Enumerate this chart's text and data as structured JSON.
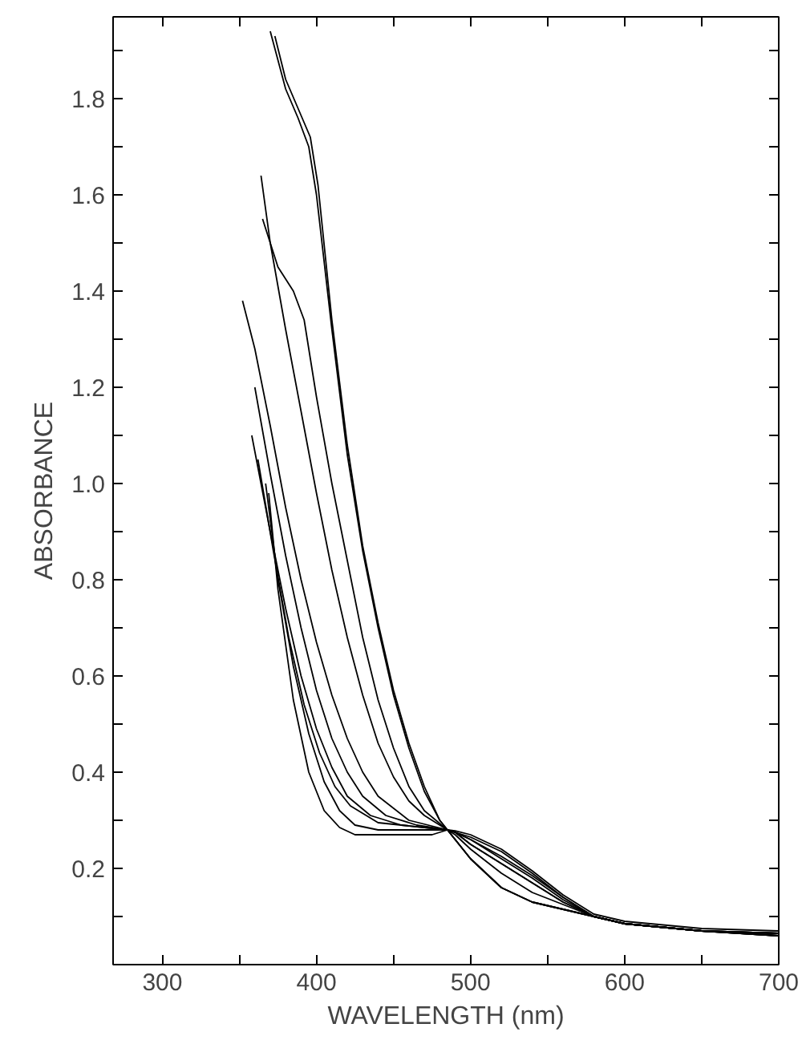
{
  "chart_data": {
    "type": "line",
    "xlabel": "WAVELENGTH (nm)",
    "ylabel": "ABSORBANCE",
    "xlim": [
      268,
      700
    ],
    "ylim": [
      0,
      1.97
    ],
    "xticks": [
      300,
      {
        "value": 350,
        "label": null
      },
      400,
      {
        "value": 450,
        "label": null
      },
      500,
      {
        "value": 550,
        "label": null
      },
      600,
      {
        "value": 650,
        "label": null
      },
      700
    ],
    "yticks": [
      {
        "value": 0.1,
        "label": null
      },
      0.2,
      {
        "value": 0.3,
        "label": null
      },
      0.4,
      {
        "value": 0.5,
        "label": null
      },
      0.6,
      {
        "value": 0.7,
        "label": null
      },
      0.8,
      {
        "value": 0.9,
        "label": null
      },
      {
        "value": 1.0,
        "label": "1.0"
      },
      {
        "value": 1.1,
        "label": null
      },
      1.2,
      {
        "value": 1.3,
        "label": null
      },
      1.4,
      {
        "value": 1.5,
        "label": null
      },
      1.6,
      {
        "value": 1.7,
        "label": null
      },
      1.8,
      {
        "value": 1.9,
        "label": null
      }
    ],
    "grid": false,
    "marker": "none",
    "line_style": "solid",
    "series": [
      {
        "color": "#000000",
        "x": [
          370,
          380,
          388,
          395,
          400,
          410,
          420,
          430,
          440,
          450,
          460,
          470,
          480,
          485,
          490,
          500,
          520,
          540,
          560,
          580,
          600,
          650,
          700
        ],
        "values": [
          1.94,
          1.82,
          1.76,
          1.7,
          1.6,
          1.32,
          1.06,
          0.86,
          0.7,
          0.56,
          0.45,
          0.36,
          0.3,
          0.28,
          0.26,
          0.22,
          0.16,
          0.13,
          0.115,
          0.1,
          0.085,
          0.07,
          0.06
        ]
      },
      {
        "color": "#000000",
        "x": [
          373,
          380,
          388,
          396,
          401,
          410,
          420,
          430,
          440,
          450,
          460,
          470,
          480,
          485,
          490,
          500,
          520,
          540,
          560,
          580,
          600,
          650,
          700
        ],
        "values": [
          1.93,
          1.84,
          1.78,
          1.72,
          1.62,
          1.34,
          1.08,
          0.87,
          0.71,
          0.57,
          0.46,
          0.37,
          0.3,
          0.28,
          0.26,
          0.22,
          0.16,
          0.13,
          0.115,
          0.1,
          0.085,
          0.07,
          0.06
        ]
      },
      {
        "color": "#000000",
        "x": [
          364,
          370,
          380,
          390,
          400,
          410,
          420,
          430,
          440,
          450,
          460,
          470,
          485,
          490,
          500,
          520,
          540,
          560,
          580,
          600,
          650,
          700
        ],
        "values": [
          1.64,
          1.5,
          1.32,
          1.15,
          0.98,
          0.82,
          0.68,
          0.56,
          0.46,
          0.39,
          0.34,
          0.31,
          0.28,
          0.26,
          0.22,
          0.16,
          0.13,
          0.115,
          0.1,
          0.085,
          0.07,
          0.06
        ]
      },
      {
        "color": "#000000",
        "x": [
          365,
          375,
          385,
          392,
          400,
          410,
          420,
          430,
          440,
          450,
          460,
          470,
          485,
          490,
          500,
          520,
          540,
          560,
          580,
          600,
          650,
          700
        ],
        "values": [
          1.55,
          1.45,
          1.4,
          1.34,
          1.18,
          1.0,
          0.84,
          0.68,
          0.55,
          0.45,
          0.37,
          0.32,
          0.28,
          0.27,
          0.24,
          0.19,
          0.15,
          0.125,
          0.1,
          0.085,
          0.07,
          0.06
        ]
      },
      {
        "color": "#000000",
        "x": [
          352,
          360,
          370,
          380,
          390,
          400,
          410,
          420,
          430,
          440,
          460,
          485,
          490,
          500,
          520,
          540,
          560,
          580,
          600,
          650,
          700
        ],
        "values": [
          1.38,
          1.28,
          1.12,
          0.95,
          0.8,
          0.67,
          0.56,
          0.47,
          0.4,
          0.35,
          0.3,
          0.28,
          0.275,
          0.25,
          0.21,
          0.17,
          0.13,
          0.1,
          0.085,
          0.07,
          0.065
        ]
      },
      {
        "color": "#000000",
        "x": [
          360,
          370,
          380,
          390,
          400,
          410,
          420,
          430,
          445,
          465,
          485,
          490,
          500,
          520,
          540,
          560,
          580,
          600,
          650,
          700
        ],
        "values": [
          1.2,
          1.02,
          0.85,
          0.7,
          0.57,
          0.47,
          0.4,
          0.35,
          0.31,
          0.29,
          0.28,
          0.275,
          0.25,
          0.21,
          0.17,
          0.13,
          0.1,
          0.085,
          0.07,
          0.065
        ]
      },
      {
        "color": "#000000",
        "x": [
          358,
          370,
          380,
          390,
          400,
          410,
          420,
          435,
          455,
          485,
          490,
          500,
          520,
          540,
          560,
          580,
          600,
          650,
          700
        ],
        "values": [
          1.1,
          0.9,
          0.74,
          0.6,
          0.49,
          0.41,
          0.35,
          0.31,
          0.29,
          0.28,
          0.275,
          0.26,
          0.22,
          0.18,
          0.135,
          0.1,
          0.085,
          0.07,
          0.065
        ]
      },
      {
        "color": "#000000",
        "x": [
          362,
          372,
          382,
          392,
          402,
          412,
          422,
          440,
          485,
          490,
          500,
          520,
          540,
          560,
          580,
          600,
          650,
          700
        ],
        "values": [
          1.05,
          0.86,
          0.68,
          0.54,
          0.44,
          0.37,
          0.33,
          0.295,
          0.28,
          0.275,
          0.26,
          0.225,
          0.185,
          0.14,
          0.1,
          0.085,
          0.07,
          0.065
        ]
      },
      {
        "color": "#000000",
        "x": [
          367,
          375,
          385,
          395,
          405,
          415,
          425,
          440,
          460,
          485,
          490,
          500,
          520,
          540,
          560,
          580,
          600,
          650,
          700
        ],
        "values": [
          1.0,
          0.8,
          0.62,
          0.48,
          0.38,
          0.32,
          0.29,
          0.28,
          0.28,
          0.28,
          0.275,
          0.265,
          0.235,
          0.19,
          0.14,
          0.1,
          0.085,
          0.07,
          0.065
        ]
      },
      {
        "color": "#000000",
        "x": [
          369,
          375,
          385,
          395,
          405,
          415,
          425,
          450,
          475,
          485,
          490,
          500,
          520,
          540,
          560,
          580,
          600,
          650,
          700
        ],
        "values": [
          0.98,
          0.78,
          0.55,
          0.4,
          0.32,
          0.285,
          0.27,
          0.27,
          0.27,
          0.28,
          0.278,
          0.27,
          0.24,
          0.195,
          0.145,
          0.105,
          0.09,
          0.075,
          0.07
        ]
      }
    ]
  }
}
